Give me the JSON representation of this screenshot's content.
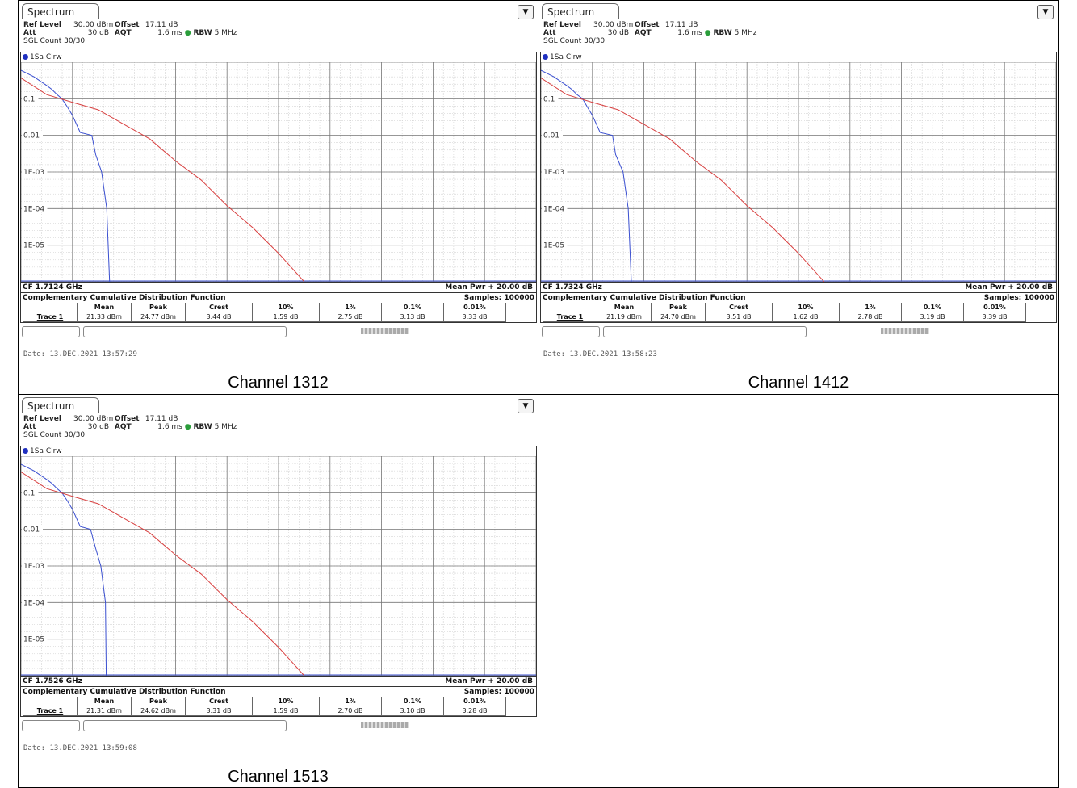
{
  "panels": [
    {
      "tab": "Spectrum",
      "ref_level_label": "Ref Level",
      "ref_level": "30.00 dBm",
      "offset_label": "Offset",
      "offset": "17.11 dB",
      "att_label": "Att",
      "att": "30 dB",
      "aqt_label": "AQT",
      "aqt": "1.6 ms",
      "rbw_label": "RBW",
      "rbw": "5 MHz",
      "sgl": "SGL Count 30/30",
      "trace_label": "1Sa Clrw",
      "y_ticks": [
        "0.1",
        "0.01",
        "1E-03",
        "1E-04",
        "1E-05"
      ],
      "cf": "CF 1.7124 GHz",
      "mean_pwr": "Mean Pwr + 20.00 dB",
      "ccdf_title": "Complementary Cumulative Distribution Function",
      "samples": "Samples: 100000",
      "headers": [
        "",
        "Mean",
        "Peak",
        "Crest",
        "10%",
        "1%",
        "0.1%",
        "0.01%"
      ],
      "row": [
        "Trace 1",
        "21.33 dBm",
        "24.77 dBm",
        "3.44 dB",
        "1.59 dB",
        "2.75 dB",
        "3.13 dB",
        "3.33 dB"
      ],
      "date": "Date: 13.DEC.2021  13:57:29",
      "caption": "Channel 1312",
      "blue_end": 1.7,
      "red_end": 5.6
    },
    {
      "tab": "Spectrum",
      "ref_level_label": "Ref Level",
      "ref_level": "30.00 dBm",
      "offset_label": "Offset",
      "offset": "17.11 dB",
      "att_label": "Att",
      "att": "30 dB",
      "aqt_label": "AQT",
      "aqt": "1.6 ms",
      "rbw_label": "RBW",
      "rbw": "5 MHz",
      "sgl": "SGL Count 30/30",
      "trace_label": "1Sa Clrw",
      "y_ticks": [
        "0.1",
        "0.01",
        "1E-03",
        "1E-04",
        "1E-05"
      ],
      "cf": "CF 1.7324 GHz",
      "mean_pwr": "Mean Pwr + 20.00 dB",
      "ccdf_title": "Complementary Cumulative Distribution Function",
      "samples": "Samples: 100000",
      "headers": [
        "",
        "Mean",
        "Peak",
        "Crest",
        "10%",
        "1%",
        "0.1%",
        "0.01%"
      ],
      "row": [
        "Trace 1",
        "21.19 dBm",
        "24.70 dBm",
        "3.51 dB",
        "1.62 dB",
        "2.78 dB",
        "3.19 dB",
        "3.39 dB"
      ],
      "date": "Date: 13.DEC.2021  13:58:23",
      "caption": "Channel 1412",
      "blue_end": 1.7,
      "red_end": 5.6
    },
    {
      "tab": "Spectrum",
      "ref_level_label": "Ref Level",
      "ref_level": "30.00 dBm",
      "offset_label": "Offset",
      "offset": "17.11 dB",
      "att_label": "Att",
      "att": "30 dB",
      "aqt_label": "AQT",
      "aqt": "1.6 ms",
      "rbw_label": "RBW",
      "rbw": "5 MHz",
      "sgl": "SGL Count 30/30",
      "trace_label": "1Sa Clrw",
      "y_ticks": [
        "0.1",
        "0.01",
        "1E-03",
        "1E-04",
        "1E-05"
      ],
      "cf": "CF 1.7526 GHz",
      "mean_pwr": "Mean Pwr + 20.00 dB",
      "ccdf_title": "Complementary Cumulative Distribution Function",
      "samples": "Samples: 100000",
      "headers": [
        "",
        "Mean",
        "Peak",
        "Crest",
        "10%",
        "1%",
        "0.1%",
        "0.01%"
      ],
      "row": [
        "Trace 1",
        "21.31 dBm",
        "24.62 dBm",
        "3.31 dB",
        "1.59 dB",
        "2.70 dB",
        "3.10 dB",
        "3.28 dB"
      ],
      "date": "Date: 13.DEC.2021  13:59:08",
      "caption": "Channel 1513",
      "blue_end": 1.7,
      "red_end": 5.6
    }
  ],
  "chart_data": [
    {
      "type": "line",
      "title": "",
      "ylabel": "",
      "x_range": [
        0,
        20
      ],
      "y_scale": "log",
      "y_range": [
        1e-06,
        1
      ],
      "series": [
        {
          "name": "1Sa Clrw",
          "color": "#3a4fd0",
          "x": [
            0,
            0.5,
            1,
            1.2,
            1.4,
            1.59,
            1.8,
            2.0,
            2.3,
            2.75,
            2.9,
            3.13,
            3.33,
            3.44
          ],
          "y": [
            0.6,
            0.4,
            0.23,
            0.18,
            0.13,
            0.1,
            0.06,
            0.035,
            0.012,
            0.01,
            0.003,
            0.001,
            0.0001,
            1e-06
          ]
        },
        {
          "name": "",
          "color": "#d84040",
          "x": [
            0,
            1,
            2,
            3,
            4,
            5,
            6,
            7,
            8,
            9,
            10,
            11
          ],
          "y": [
            0.37,
            0.13,
            0.08,
            0.05,
            0.02,
            0.008,
            0.002,
            0.0006,
            0.00012,
            3e-05,
            6e-06,
            1e-06
          ]
        }
      ]
    },
    {
      "type": "line",
      "title": "",
      "ylabel": "",
      "x_range": [
        0,
        20
      ],
      "y_scale": "log",
      "y_range": [
        1e-06,
        1
      ],
      "series": [
        {
          "name": "1Sa Clrw",
          "color": "#3a4fd0",
          "x": [
            0,
            0.5,
            1,
            1.2,
            1.4,
            1.62,
            1.8,
            2.0,
            2.3,
            2.78,
            2.9,
            3.19,
            3.39,
            3.51
          ],
          "y": [
            0.6,
            0.4,
            0.23,
            0.18,
            0.13,
            0.1,
            0.06,
            0.035,
            0.012,
            0.01,
            0.003,
            0.001,
            0.0001,
            1e-06
          ]
        },
        {
          "name": "",
          "color": "#d84040",
          "x": [
            0,
            1,
            2,
            3,
            4,
            5,
            6,
            7,
            8,
            9,
            10,
            11
          ],
          "y": [
            0.37,
            0.13,
            0.08,
            0.05,
            0.02,
            0.008,
            0.002,
            0.0006,
            0.00012,
            3e-05,
            6e-06,
            1e-06
          ]
        }
      ]
    },
    {
      "type": "line",
      "title": "",
      "ylabel": "",
      "x_range": [
        0,
        20
      ],
      "y_scale": "log",
      "y_range": [
        1e-06,
        1
      ],
      "series": [
        {
          "name": "1Sa Clrw",
          "color": "#3a4fd0",
          "x": [
            0,
            0.5,
            1,
            1.2,
            1.4,
            1.59,
            1.8,
            2.0,
            2.3,
            2.7,
            2.9,
            3.1,
            3.28,
            3.31
          ],
          "y": [
            0.6,
            0.4,
            0.23,
            0.18,
            0.13,
            0.1,
            0.06,
            0.035,
            0.012,
            0.01,
            0.003,
            0.001,
            0.0001,
            1e-06
          ]
        },
        {
          "name": "",
          "color": "#d84040",
          "x": [
            0,
            1,
            2,
            3,
            4,
            5,
            6,
            7,
            8,
            9,
            10,
            11
          ],
          "y": [
            0.37,
            0.13,
            0.08,
            0.05,
            0.02,
            0.008,
            0.002,
            0.0006,
            0.00012,
            3e-05,
            6e-06,
            1e-06
          ]
        }
      ]
    }
  ]
}
